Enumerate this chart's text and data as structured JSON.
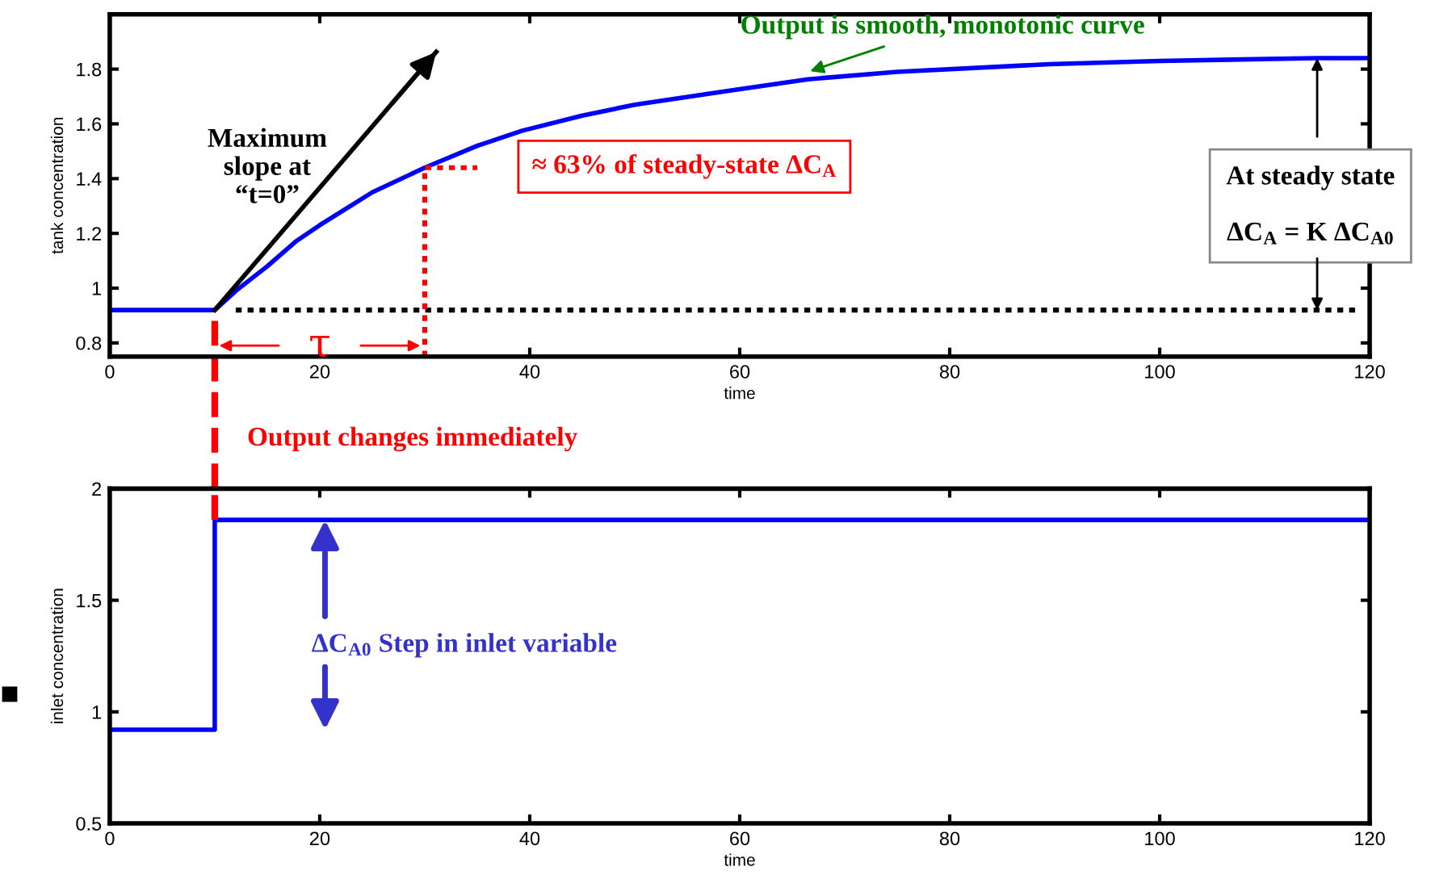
{
  "chart_data": [
    {
      "type": "line",
      "xlabel": "time",
      "ylabel": "tank concentration",
      "xlim": [
        0,
        120
      ],
      "ylim": [
        0.75,
        2.0
      ],
      "xticks": [
        0,
        20,
        40,
        60,
        80,
        100,
        120
      ],
      "yticks": [
        0.8,
        1,
        1.2,
        1.4,
        1.6,
        1.8
      ],
      "series": [
        {
          "color": "#0000ff",
          "x": [
            0,
            10,
            12,
            15,
            17.7,
            20,
            25,
            30,
            35,
            39.3,
            45,
            50,
            58.8,
            66.5,
            75,
            89.5,
            100,
            115,
            120
          ],
          "values": [
            0.92,
            0.92,
            0.99,
            1.08,
            1.17,
            1.23,
            1.35,
            1.44,
            1.52,
            1.575,
            1.63,
            1.67,
            1.72,
            1.763,
            1.79,
            1.818,
            1.83,
            1.84,
            1.84
          ]
        },
        {
          "color": "#000000",
          "x": [
            10,
            31.1
          ],
          "values": [
            0.92,
            1.863
          ]
        },
        {
          "color": "#000000",
          "x": [
            12,
            119
          ],
          "values": [
            0.92,
            0.92
          ],
          "line_style": "dotted"
        },
        {
          "color": "#ff0000",
          "x": [
            30,
            30,
            35
          ],
          "values": [
            0.75,
            1.44,
            1.44
          ],
          "line_style": "dotted"
        }
      ],
      "ref_lines": [
        {
          "axis": "x",
          "value": 10,
          "color": "#ff0000",
          "line_style": "dashed"
        }
      ],
      "annotations": [
        {
          "text": "Output is smooth, monotonic curve",
          "x": 66.5,
          "y": 1.79
        },
        "Maximum\nslope at\n“t=0”",
        "≈ 63% of steady-state ΔC$_{A}$",
        "τ",
        "At steady state\n\nΔC$_{A}$ = K ΔC$_{A0}$",
        "Output changes immediately"
      ]
    },
    {
      "type": "line",
      "xlabel": "time",
      "ylabel": "inlet concentration",
      "xlim": [
        0,
        120
      ],
      "ylim": [
        0.5,
        2
      ],
      "xticks": [
        0,
        20,
        40,
        60,
        80,
        100,
        120
      ],
      "yticks": [
        0.5,
        1,
        1.5,
        2
      ],
      "series": [
        {
          "type": "step",
          "color": "#0000ff",
          "x": [
            0,
            10,
            120
          ],
          "values": [
            0.92,
            1.86,
            1.86
          ]
        }
      ],
      "ref_lines": [
        {
          "axis": "x",
          "value": 10,
          "color": "#ff0000",
          "line_style": "dashed"
        }
      ],
      "annotations": [
        {
          "text": "ΔC$_{A0}$ Step in inlet variable",
          "x": 20.5,
          "y": 1.86
        }
      ]
    }
  ]
}
